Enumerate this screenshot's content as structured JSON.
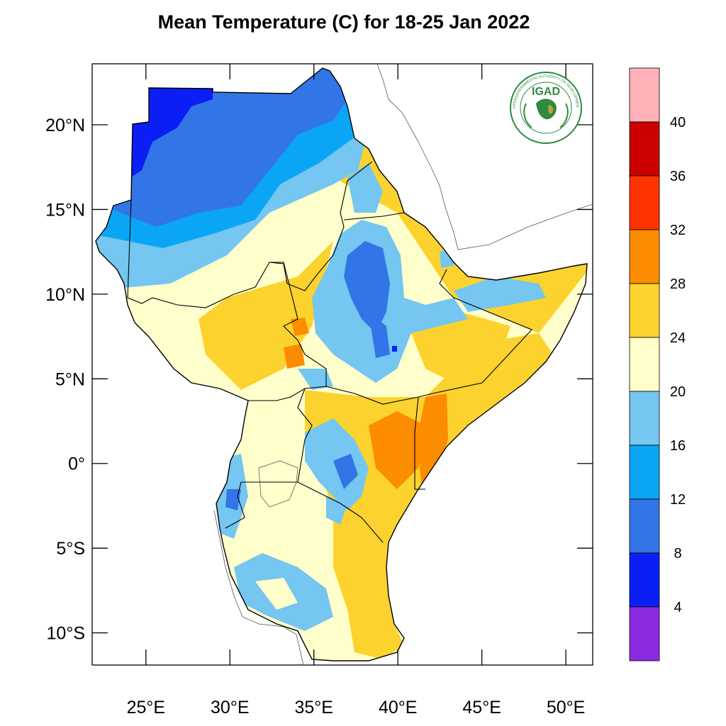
{
  "title": "Mean Temperature (C) for 18-25 Jan 2022",
  "map": {
    "region": "Greater Horn of Africa",
    "lon_range": [
      21.8,
      51.6
    ],
    "lat_range": [
      -11.9,
      23.6
    ],
    "lat_ticks": [
      {
        "value": 20,
        "label": "20°N"
      },
      {
        "value": 15,
        "label": "15°N"
      },
      {
        "value": 10,
        "label": "10°N"
      },
      {
        "value": 5,
        "label": "5°N"
      },
      {
        "value": 0,
        "label": "0°"
      },
      {
        "value": -5,
        "label": "5°S"
      },
      {
        "value": -10,
        "label": "10°S"
      }
    ],
    "lon_ticks": [
      {
        "value": 25,
        "label": "25°E"
      },
      {
        "value": 30,
        "label": "30°E"
      },
      {
        "value": 35,
        "label": "35°E"
      },
      {
        "value": 40,
        "label": "40°E"
      },
      {
        "value": 45,
        "label": "45°E"
      },
      {
        "value": 50,
        "label": "50°E"
      }
    ]
  },
  "colorbar": {
    "levels": [
      4,
      8,
      12,
      16,
      20,
      24,
      28,
      32,
      36,
      40
    ],
    "colors": [
      "#8a2be2",
      "#0a1ef5",
      "#3275e6",
      "#0aa6f5",
      "#75c6f0",
      "#ffffcc",
      "#fcd22e",
      "#fc8c00",
      "#ff3300",
      "#cc0000",
      "#ffb3b8"
    ]
  },
  "logo": {
    "text": "IGAD",
    "ring_text": "INTERGOVERNMENTAL AUTHORITY ON DEVELOPMENT"
  },
  "colors": {
    "igad_green": "#2e8b3f",
    "logo_gold": "#c8a03c"
  }
}
